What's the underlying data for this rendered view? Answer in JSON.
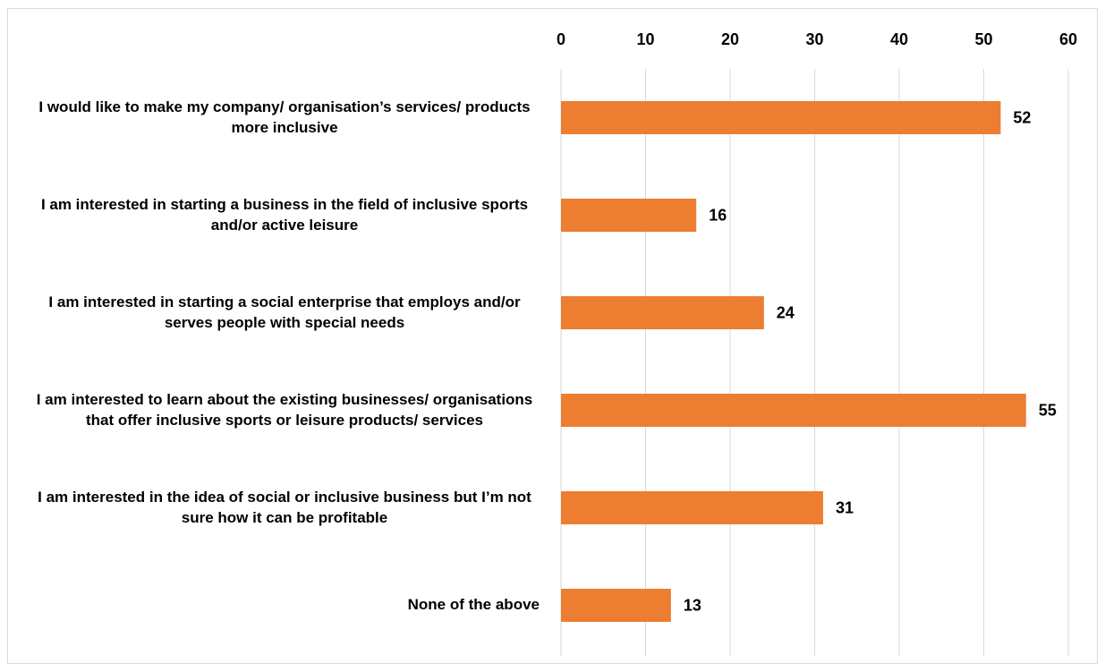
{
  "chart_data": {
    "type": "barh",
    "categories": [
      "I would like to make my company/ organisation’s services/ products more inclusive",
      "I am interested in starting a business in the field of inclusive sports and/or active leisure",
      "I am interested in starting a social enterprise that employs and/or serves people with special needs",
      "I am interested to learn about the existing businesses/ organisations that offer inclusive sports or leisure products/ services",
      "I am interested in the idea of social or inclusive business but I’m not sure how it can be profitable",
      "None of the above"
    ],
    "values": [
      52,
      16,
      24,
      55,
      31,
      13
    ],
    "color": "#ed7d31",
    "xlim": [
      0,
      60
    ],
    "xticks": [
      0,
      10,
      20,
      30,
      40,
      50,
      60
    ],
    "grid": true
  }
}
